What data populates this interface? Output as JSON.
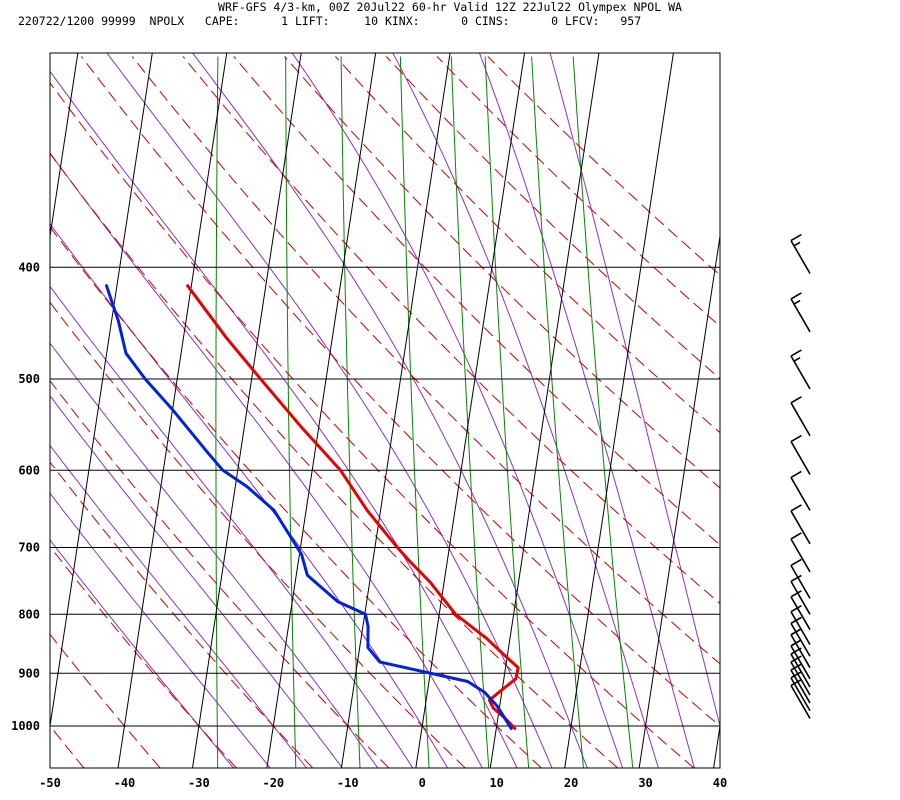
{
  "header": {
    "title": "WRF-GFS 4/3-km, 00Z 20Jul22 60-hr Valid 12Z 22Jul22 Olympex NPOL WA",
    "line2": "220722/1200 99999  NPOLX   CAPE:      1 LIFT:     10 KINX:      0 CINS:      0 LFCV:   957"
  },
  "colors": {
    "temperature": "#e60000",
    "dewpoint": "#0022dd",
    "isobar": "#000000",
    "isotherm": "#000000",
    "dry_adiabat": "#cc0000",
    "moist_adiabat": "#8833cc",
    "mixing_ratio": "#008800",
    "wind_barb": "#000000"
  },
  "chart_data": {
    "type": "line",
    "title": "",
    "xlabel": "",
    "ylabel": "",
    "xlim": [
      -50,
      40
    ],
    "ylim": [
      1050,
      400
    ],
    "y_scale": "log",
    "skew": "isotherms slanted to the right",
    "x_ticks": [
      "-50",
      "-40",
      "-30",
      "-20",
      "-10",
      "0",
      "10",
      "20",
      "30",
      "40"
    ],
    "y_ticks": [
      "400",
      "500",
      "600",
      "700",
      "800",
      "900",
      "1000"
    ],
    "grid": true,
    "series": [
      {
        "role": "temperature",
        "points": [
          {
            "p": 1005,
            "t": 12.5
          },
          {
            "p": 985,
            "t": 11.0
          },
          {
            "p": 965,
            "t": 9.2
          },
          {
            "p": 950,
            "t": 8.5
          },
          {
            "p": 935,
            "t": 9.6
          },
          {
            "p": 910,
            "t": 11.6
          },
          {
            "p": 890,
            "t": 11.7
          },
          {
            "p": 865,
            "t": 9.3
          },
          {
            "p": 840,
            "t": 6.9
          },
          {
            "p": 810,
            "t": 3.4
          },
          {
            "p": 800,
            "t": 2.2
          },
          {
            "p": 750,
            "t": -1.9
          },
          {
            "p": 720,
            "t": -5.0
          },
          {
            "p": 700,
            "t": -7.0
          },
          {
            "p": 650,
            "t": -11.8
          },
          {
            "p": 600,
            "t": -16.2
          },
          {
            "p": 550,
            "t": -22.4
          },
          {
            "p": 500,
            "t": -28.8
          },
          {
            "p": 460,
            "t": -34.3
          },
          {
            "p": 415,
            "t": -40.5
          }
        ]
      },
      {
        "role": "dewpoint",
        "points": [
          {
            "p": 1005,
            "t": 12.0
          },
          {
            "p": 960,
            "t": 9.6
          },
          {
            "p": 935,
            "t": 7.7
          },
          {
            "p": 915,
            "t": 5.2
          },
          {
            "p": 880,
            "t": -7.0
          },
          {
            "p": 855,
            "t": -8.9
          },
          {
            "p": 820,
            "t": -9.3
          },
          {
            "p": 800,
            "t": -9.9
          },
          {
            "p": 780,
            "t": -13.9
          },
          {
            "p": 740,
            "t": -18.5
          },
          {
            "p": 710,
            "t": -19.7
          },
          {
            "p": 650,
            "t": -24.3
          },
          {
            "p": 620,
            "t": -28.4
          },
          {
            "p": 600,
            "t": -32.0
          },
          {
            "p": 580,
            "t": -34.3
          },
          {
            "p": 530,
            "t": -40.2
          },
          {
            "p": 500,
            "t": -44.3
          },
          {
            "p": 475,
            "t": -47.4
          },
          {
            "p": 445,
            "t": -49.1
          },
          {
            "p": 415,
            "t": -51.4
          }
        ]
      }
    ],
    "wind_barbs": [
      {
        "p": 405,
        "speed_kt": 15
      },
      {
        "p": 455,
        "speed_kt": 15
      },
      {
        "p": 510,
        "speed_kt": 15
      },
      {
        "p": 560,
        "speed_kt": 10
      },
      {
        "p": 605,
        "speed_kt": 10
      },
      {
        "p": 650,
        "speed_kt": 10
      },
      {
        "p": 695,
        "speed_kt": 10
      },
      {
        "p": 735,
        "speed_kt": 10
      },
      {
        "p": 775,
        "speed_kt": 10
      },
      {
        "p": 800,
        "speed_kt": 10
      },
      {
        "p": 825,
        "speed_kt": 10
      },
      {
        "p": 850,
        "speed_kt": 10
      },
      {
        "p": 870,
        "speed_kt": 10
      },
      {
        "p": 890,
        "speed_kt": 10
      },
      {
        "p": 910,
        "speed_kt": 10
      },
      {
        "p": 925,
        "speed_kt": 10
      },
      {
        "p": 940,
        "speed_kt": 10
      },
      {
        "p": 955,
        "speed_kt": 10
      },
      {
        "p": 970,
        "speed_kt": 10
      },
      {
        "p": 985,
        "speed_kt": 10
      }
    ]
  }
}
